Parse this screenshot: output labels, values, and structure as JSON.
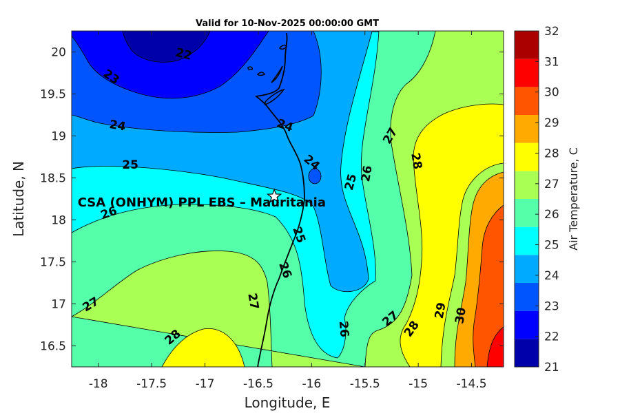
{
  "chart_data": {
    "type": "contour",
    "title": "Valid for 10-Nov-2025 00:00:00 GMT",
    "xlabel": "Longitude, E",
    "ylabel": "Latitude, N",
    "xlim": [
      -18.25,
      -14.2
    ],
    "ylim": [
      16.25,
      20.25
    ],
    "xticks": [
      -18,
      -17.5,
      -17,
      -16.5,
      -16,
      -15.5,
      -15,
      -14.5
    ],
    "xtick_labels": [
      "-18",
      "-17.5",
      "-17",
      "-16.5",
      "-16",
      "-15.5",
      "-15",
      "-14.5"
    ],
    "yticks": [
      16.5,
      17,
      17.5,
      18,
      18.5,
      19,
      19.5,
      20
    ],
    "ytick_labels": [
      "16.5",
      "17",
      "17.5",
      "18",
      "18.5",
      "19",
      "19.5",
      "20"
    ],
    "colorbar": {
      "label": "Air Temperature, C",
      "min": 21,
      "max": 32,
      "ticks": [
        "21",
        "22",
        "23",
        "24",
        "25",
        "26",
        "27",
        "28",
        "29",
        "30",
        "31",
        "32"
      ],
      "colors": [
        "#0000aa",
        "#0000ff",
        "#0055ff",
        "#00aaff",
        "#00ffff",
        "#55ffaa",
        "#aaff55",
        "#ffff00",
        "#ffaa00",
        "#ff5500",
        "#ff0000",
        "#aa0000"
      ]
    },
    "contour_labels": [
      {
        "text": "22",
        "lon": -17.2,
        "lat": 19.97,
        "rot": 15
      },
      {
        "text": "23",
        "lon": -17.88,
        "lat": 19.7,
        "rot": 35
      },
      {
        "text": "24",
        "lon": -17.82,
        "lat": 19.12,
        "rot": 10
      },
      {
        "text": "24",
        "lon": -16.25,
        "lat": 19.12,
        "rot": 20
      },
      {
        "text": "24",
        "lon": -16.0,
        "lat": 18.68,
        "rot": 40
      },
      {
        "text": "25",
        "lon": -17.7,
        "lat": 18.65,
        "rot": 0
      },
      {
        "text": "25",
        "lon": -16.12,
        "lat": 17.82,
        "rot": 70
      },
      {
        "text": "25",
        "lon": -15.63,
        "lat": 18.45,
        "rot": -75
      },
      {
        "text": "26",
        "lon": -17.9,
        "lat": 18.08,
        "rot": -20
      },
      {
        "text": "26",
        "lon": -16.25,
        "lat": 17.4,
        "rot": 70
      },
      {
        "text": "26",
        "lon": -15.48,
        "lat": 18.55,
        "rot": -80
      },
      {
        "text": "26",
        "lon": -15.7,
        "lat": 16.7,
        "rot": 85
      },
      {
        "text": "27",
        "lon": -18.07,
        "lat": 16.99,
        "rot": -30
      },
      {
        "text": "27",
        "lon": -16.55,
        "lat": 17.03,
        "rot": 80
      },
      {
        "text": "27",
        "lon": -15.26,
        "lat": 19.0,
        "rot": -60
      },
      {
        "text": "27",
        "lon": -15.26,
        "lat": 16.82,
        "rot": -40
      },
      {
        "text": "28",
        "lon": -17.3,
        "lat": 16.6,
        "rot": -40
      },
      {
        "text": "28",
        "lon": -15.02,
        "lat": 18.7,
        "rot": 80
      },
      {
        "text": "28",
        "lon": -15.06,
        "lat": 16.7,
        "rot": -55
      },
      {
        "text": "29",
        "lon": -14.79,
        "lat": 16.92,
        "rot": -80
      },
      {
        "text": "30",
        "lon": -14.6,
        "lat": 16.86,
        "rot": -80
      }
    ],
    "marker": {
      "lon": -16.35,
      "lat": 18.28,
      "symbol": "star"
    },
    "annotation": {
      "text": "CSA (ONHYM) PPL EBS  – Mauritania",
      "lon": -17.03,
      "lat": 18.16
    }
  }
}
